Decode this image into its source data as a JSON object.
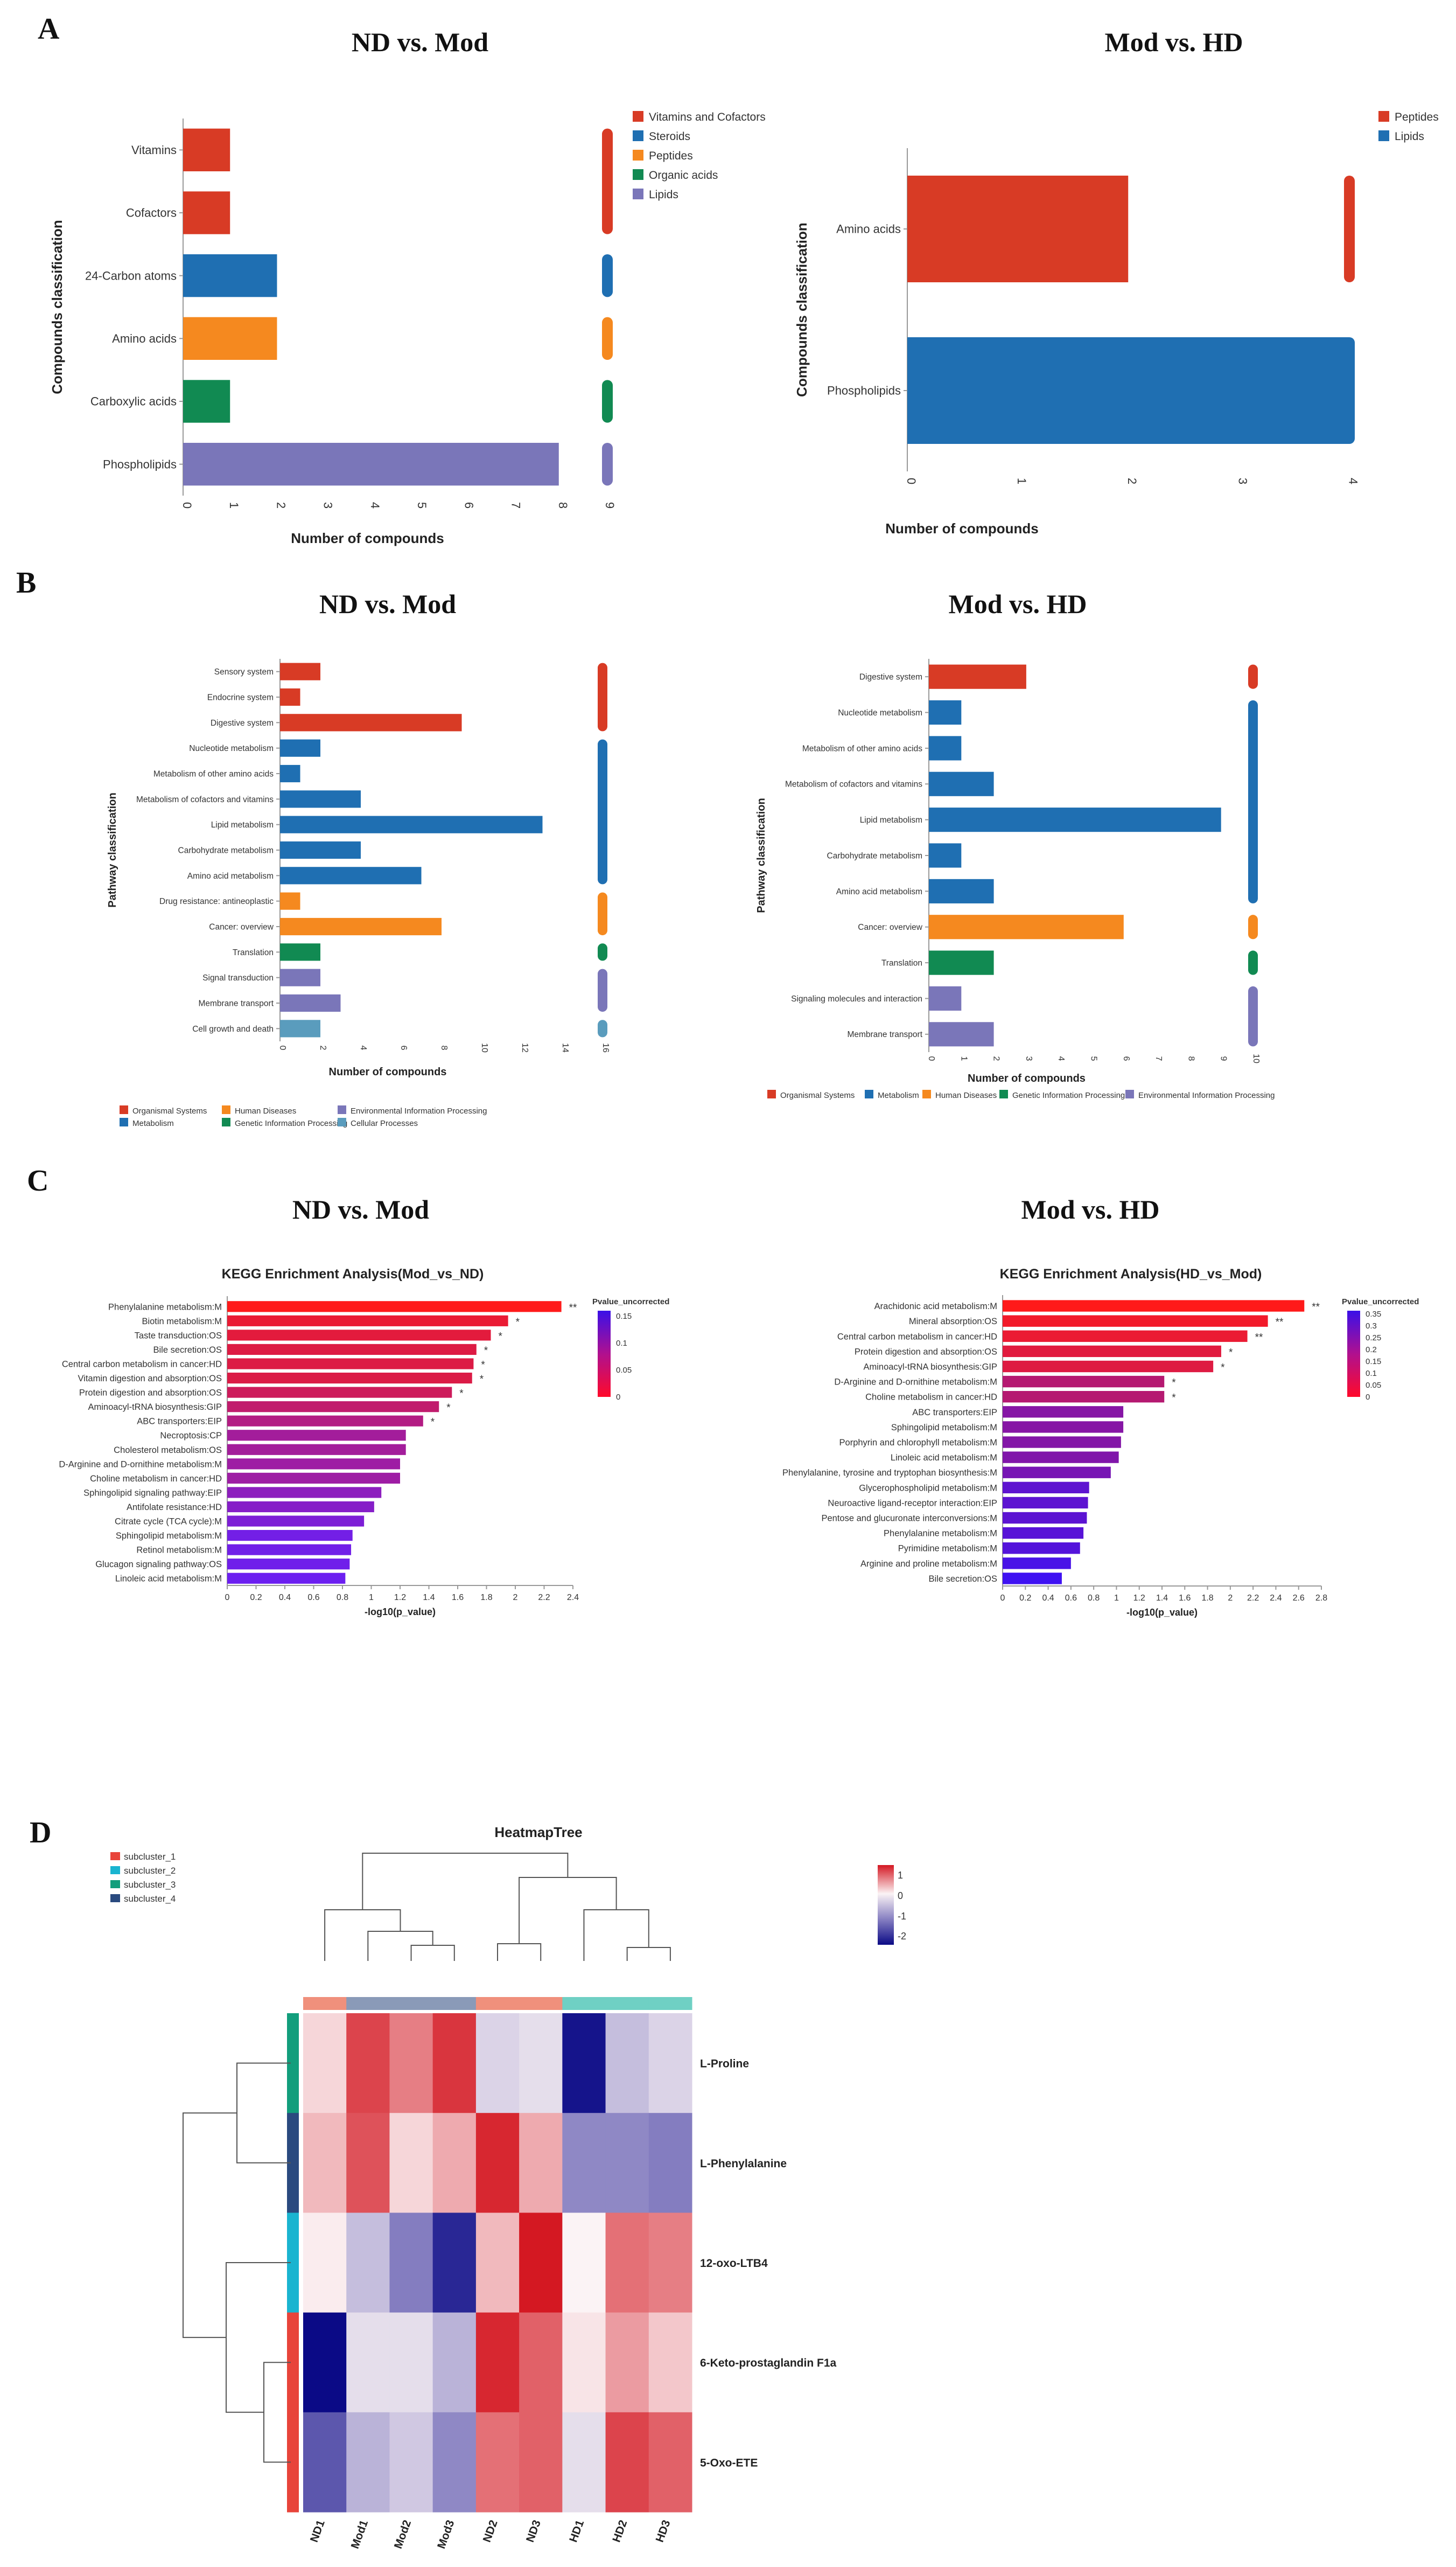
{
  "panels": {
    "a": "A",
    "b": "B",
    "c": "C",
    "d": "D",
    "a_left_title": "ND vs. Mod",
    "a_right_title": "Mod vs. HD",
    "b_left_title": "ND vs. Mod",
    "b_right_title": "Mod vs. HD",
    "c_left_title": "ND vs. Mod",
    "c_right_title": "Mod vs. HD"
  },
  "colors": {
    "red": "#d83b25",
    "blue": "#1f6fb2",
    "orange": "#f5891f",
    "green": "#118a52",
    "purple": "#7a76b9",
    "teal": "#5a9cbd"
  },
  "chart_data": [
    {
      "id": "A1",
      "type": "bar",
      "orientation": "horizontal",
      "title": "",
      "xlabel": "Number of compounds",
      "ylabel": "Compounds classification",
      "xlim": [
        0,
        9
      ],
      "xticks": [
        "0",
        "1",
        "2",
        "3",
        "4",
        "5",
        "6",
        "7",
        "8",
        "9"
      ],
      "categories": [
        "Vitamins",
        "Cofactors",
        "24-Carbon atoms",
        "Amino acids",
        "Carboxylic acids",
        "Phospholipids"
      ],
      "values": [
        1,
        1,
        2,
        2,
        1,
        8
      ],
      "groups": [
        "Vitamins and Cofactors",
        "Vitamins and Cofactors",
        "Steroids",
        "Peptides",
        "Organic acids",
        "Lipids"
      ],
      "legend": [
        {
          "label": "Vitamins and Cofactors",
          "color": "#d83b25"
        },
        {
          "label": "Steroids",
          "color": "#1f6fb2"
        },
        {
          "label": "Peptides",
          "color": "#f5891f"
        },
        {
          "label": "Organic acids",
          "color": "#118a52"
        },
        {
          "label": "Lipids",
          "color": "#7a76b9"
        }
      ]
    },
    {
      "id": "A2",
      "type": "bar",
      "orientation": "horizontal",
      "title": "",
      "xlabel": "Number of compounds",
      "ylabel": "Compounds classification",
      "xlim": [
        0,
        4.5
      ],
      "xticks": [
        "0",
        "1",
        "2",
        "3",
        "4"
      ],
      "categories": [
        "Amino acids",
        "Phospholipids"
      ],
      "values": [
        2,
        4
      ],
      "groups": [
        "Peptides",
        "Lipids"
      ],
      "legend": [
        {
          "label": "Peptides",
          "color": "#d83b25"
        },
        {
          "label": "Lipids",
          "color": "#1f6fb2"
        }
      ]
    },
    {
      "id": "B1",
      "type": "bar",
      "orientation": "horizontal",
      "title": "",
      "xlabel": "Number of compounds",
      "ylabel": "Pathway classification",
      "xlim": [
        0,
        16
      ],
      "xticks": [
        "0",
        "2",
        "4",
        "6",
        "8",
        "10",
        "12",
        "14",
        "16"
      ],
      "categories": [
        "Sensory system",
        "Endocrine system",
        "Digestive system",
        "Nucleotide metabolism",
        "Metabolism of other amino acids",
        "Metabolism of cofactors and vitamins",
        "Lipid metabolism",
        "Carbohydrate metabolism",
        "Amino acid metabolism",
        "Drug resistance: antineoplastic",
        "Cancer: overview",
        "Translation",
        "Signal transduction",
        "Membrane transport",
        "Cell growth and death"
      ],
      "values": [
        2,
        1,
        9,
        2,
        1,
        4,
        13,
        4,
        7,
        1,
        8,
        2,
        2,
        3,
        2
      ],
      "groups": [
        "Organismal Systems",
        "Organismal Systems",
        "Organismal Systems",
        "Metabolism",
        "Metabolism",
        "Metabolism",
        "Metabolism",
        "Metabolism",
        "Metabolism",
        "Human Diseases",
        "Human Diseases",
        "Genetic Information Processing",
        "Environmental Information Processing",
        "Environmental Information Processing",
        "Cellular Processes"
      ],
      "legend": [
        {
          "label": "Organismal Systems",
          "color": "#d83b25"
        },
        {
          "label": "Metabolism",
          "color": "#1f6fb2"
        },
        {
          "label": "Human Diseases",
          "color": "#f5891f"
        },
        {
          "label": "Genetic Information Processing",
          "color": "#118a52"
        },
        {
          "label": "Environmental Information Processing",
          "color": "#7a76b9"
        },
        {
          "label": "Cellular Processes",
          "color": "#5a9cbd"
        }
      ]
    },
    {
      "id": "B2",
      "type": "bar",
      "orientation": "horizontal",
      "title": "",
      "xlabel": "Number of compounds",
      "ylabel": "Pathway classification",
      "xlim": [
        0,
        10
      ],
      "xticks": [
        "0",
        "1",
        "2",
        "3",
        "4",
        "5",
        "6",
        "7",
        "8",
        "9",
        "10"
      ],
      "categories": [
        "Digestive system",
        "Nucleotide metabolism",
        "Metabolism of other amino acids",
        "Metabolism of cofactors and vitamins",
        "Lipid metabolism",
        "Carbohydrate metabolism",
        "Amino acid metabolism",
        "Cancer: overview",
        "Translation",
        "Signaling molecules and interaction",
        "Membrane transport"
      ],
      "values": [
        3,
        1,
        1,
        2,
        9,
        1,
        2,
        6,
        2,
        1,
        2
      ],
      "groups": [
        "Organismal Systems",
        "Metabolism",
        "Metabolism",
        "Metabolism",
        "Metabolism",
        "Metabolism",
        "Metabolism",
        "Human Diseases",
        "Genetic Information Processing",
        "Environmental Information Processing",
        "Environmental Information Processing"
      ],
      "legend": [
        {
          "label": "Organismal Systems",
          "color": "#d83b25"
        },
        {
          "label": "Metabolism",
          "color": "#1f6fb2"
        },
        {
          "label": "Human Diseases",
          "color": "#f5891f"
        },
        {
          "label": "Genetic Information Processing",
          "color": "#118a52"
        },
        {
          "label": "Environmental Information Processing",
          "color": "#7a76b9"
        }
      ]
    },
    {
      "id": "C1",
      "type": "bar",
      "orientation": "horizontal",
      "title": "KEGG Enrichment Analysis(Mod_vs_ND)",
      "xlabel": "-log10(p_value)",
      "ylabel": "",
      "xlim": [
        0,
        2.4
      ],
      "xticks": [
        "0",
        "0.2",
        "0.4",
        "0.6",
        "0.8",
        "1",
        "1.2",
        "1.4",
        "1.6",
        "1.8",
        "2",
        "2.2",
        "2.4"
      ],
      "categories": [
        "Phenylalanine metabolism:M",
        "Biotin metabolism:M",
        "Taste transduction:OS",
        "Bile secretion:OS",
        "Central carbon metabolism in cancer:HD",
        "Vitamin digestion and absorption:OS",
        "Protein digestion and absorption:OS",
        "Aminoacyl-tRNA biosynthesis:GIP",
        "ABC transporters:EIP",
        "Necroptosis:CP",
        "Cholesterol metabolism:OS",
        "D-Arginine and D-ornithine metabolism:M",
        "Choline metabolism in cancer:HD",
        "Sphingolipid signaling pathway:EIP",
        "Antifolate resistance:HD",
        "Citrate cycle (TCA cycle):M",
        "Sphingolipid metabolism:M",
        "Retinol metabolism:M",
        "Glucagon signaling pathway:OS",
        "Linoleic acid metabolism:M"
      ],
      "values": [
        2.32,
        1.95,
        1.83,
        1.73,
        1.71,
        1.7,
        1.56,
        1.47,
        1.36,
        1.24,
        1.24,
        1.2,
        1.2,
        1.07,
        1.02,
        0.95,
        0.87,
        0.86,
        0.85,
        0.82
      ],
      "significance": [
        "**",
        "*",
        "*",
        "*",
        "*",
        "*",
        "*",
        "*",
        "*",
        "",
        "",
        "",
        "",
        "",
        "",
        "",
        "",
        "",
        "",
        ""
      ],
      "legend_title": "Pvalue_uncorrected",
      "colorbar_ticks": [
        "0.15",
        "0.1",
        "0.05",
        "0"
      ]
    },
    {
      "id": "C2",
      "type": "bar",
      "orientation": "horizontal",
      "title": "KEGG Enrichment Analysis(HD_vs_Mod)",
      "xlabel": "-log10(p_value)",
      "ylabel": "",
      "xlim": [
        0,
        2.8
      ],
      "xticks": [
        "0",
        "0.2",
        "0.4",
        "0.6",
        "0.8",
        "1",
        "1.2",
        "1.4",
        "1.6",
        "1.8",
        "2",
        "2.2",
        "2.4",
        "2.6",
        "2.8"
      ],
      "categories": [
        "Arachidonic acid metabolism:M",
        "Mineral absorption:OS",
        "Central carbon metabolism in cancer:HD",
        "Protein digestion and absorption:OS",
        "Aminoacyl-tRNA biosynthesis:GIP",
        "D-Arginine and D-ornithine metabolism:M",
        "Choline metabolism in cancer:HD",
        "ABC transporters:EIP",
        "Sphingolipid metabolism:M",
        "Porphyrin and chlorophyll metabolism:M",
        "Linoleic acid metabolism:M",
        "Phenylalanine, tyrosine and tryptophan biosynthesis:M",
        "Glycerophospholipid metabolism:M",
        "Neuroactive ligand-receptor interaction:EIP",
        "Pentose and glucuronate interconversions:M",
        "Phenylalanine metabolism:M",
        "Pyrimidine metabolism:M",
        "Arginine and proline metabolism:M",
        "Bile secretion:OS"
      ],
      "values": [
        2.65,
        2.33,
        2.15,
        1.92,
        1.85,
        1.42,
        1.42,
        1.06,
        1.06,
        1.04,
        1.02,
        0.95,
        0.76,
        0.75,
        0.74,
        0.71,
        0.68,
        0.6,
        0.52
      ],
      "significance": [
        "**",
        "**",
        "**",
        "*",
        "*",
        "*",
        "*",
        "",
        "",
        "",
        "",
        "",
        "",
        "",
        "",
        "",
        "",
        "",
        ""
      ],
      "legend_title": "Pvalue_uncorrected",
      "colorbar_ticks": [
        "0.35",
        "0.3",
        "0.25",
        "0.2",
        "0.15",
        "0.1",
        "0.05",
        "0"
      ]
    },
    {
      "id": "D",
      "type": "heatmap",
      "title": "HeatmapTree",
      "columns": [
        "ND1",
        "Mod1",
        "Mod2",
        "Mod3",
        "ND2",
        "ND3",
        "HD1",
        "HD2",
        "HD3"
      ],
      "rows": [
        "L-Proline",
        "L-Phenylalanine",
        "12-oxo-LTB4",
        "6-Keto-prostaglandin F1a",
        "5-Oxo-ETE"
      ],
      "values": [
        [
          0.2,
          1.2,
          0.8,
          1.3,
          -0.3,
          -0.2,
          -2.2,
          -0.5,
          -0.3
        ],
        [
          0.4,
          1.1,
          0.2,
          0.5,
          1.4,
          0.5,
          -1.0,
          -1.0,
          -1.1
        ],
        [
          0.05,
          -0.5,
          -1.1,
          -2.0,
          0.4,
          1.5,
          0.0,
          0.9,
          0.8
        ],
        [
          -2.3,
          -0.2,
          -0.2,
          -0.6,
          1.4,
          1.0,
          0.1,
          0.6,
          0.3
        ],
        [
          -1.5,
          -0.6,
          -0.4,
          -1.0,
          0.9,
          1.0,
          -0.2,
          1.2,
          1.0
        ]
      ],
      "row_subclusters": [
        "subcluster_3",
        "subcluster_4",
        "subcluster_2",
        "subcluster_1",
        "subcluster_1"
      ],
      "col_groups": [
        "ND",
        "Mod",
        "Mod",
        "Mod",
        "ND",
        "ND",
        "HD",
        "HD",
        "HD"
      ],
      "colorbar_ticks": [
        "1",
        "0",
        "-1",
        "-2"
      ],
      "colorbar_range": [
        -2.3,
        1.5
      ],
      "legend": [
        {
          "label": "subcluster_1",
          "color": "#e8443a"
        },
        {
          "label": "subcluster_2",
          "color": "#1ab4d0"
        },
        {
          "label": "subcluster_3",
          "color": "#129e7c"
        },
        {
          "label": "subcluster_4",
          "color": "#2a4a7f"
        }
      ]
    }
  ]
}
